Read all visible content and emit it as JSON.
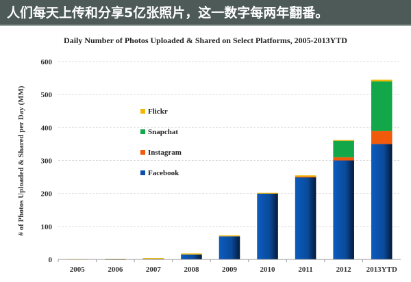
{
  "header": {
    "title": "人们每天上传和分享5亿张照片，这一数字每两年翻番。"
  },
  "chart_data": {
    "type": "bar",
    "stacked": true,
    "title": "Daily Number of Photos Uploaded & Shared on Select Platforms, 2005-2013YTD",
    "xlabel": "",
    "ylabel": "# of Photos Uploaded & Shared per Day (MM)",
    "ylim": [
      0,
      600
    ],
    "yticks": [
      "0",
      "100",
      "200",
      "300",
      "400",
      "500",
      "600"
    ],
    "categories": [
      "2005",
      "2006",
      "2007",
      "2008",
      "2009",
      "2010",
      "2011",
      "2012",
      "2013YTD"
    ],
    "series": [
      {
        "name": "Facebook",
        "color": "#0b4fa8",
        "values": [
          0,
          1,
          2,
          15,
          70,
          200,
          250,
          300,
          350
        ]
      },
      {
        "name": "Instagram",
        "color": "#f05a0a",
        "values": [
          0,
          0,
          0,
          0,
          0,
          0,
          1,
          10,
          40
        ]
      },
      {
        "name": "Snapchat",
        "color": "#12a84a",
        "values": [
          0,
          0,
          0,
          0,
          0,
          0,
          0,
          50,
          150
        ]
      },
      {
        "name": "Flickr",
        "color": "#f2b705",
        "values": [
          1,
          1,
          2,
          3,
          3,
          2,
          4,
          2,
          5
        ]
      }
    ],
    "legend": "upper-left inside"
  }
}
